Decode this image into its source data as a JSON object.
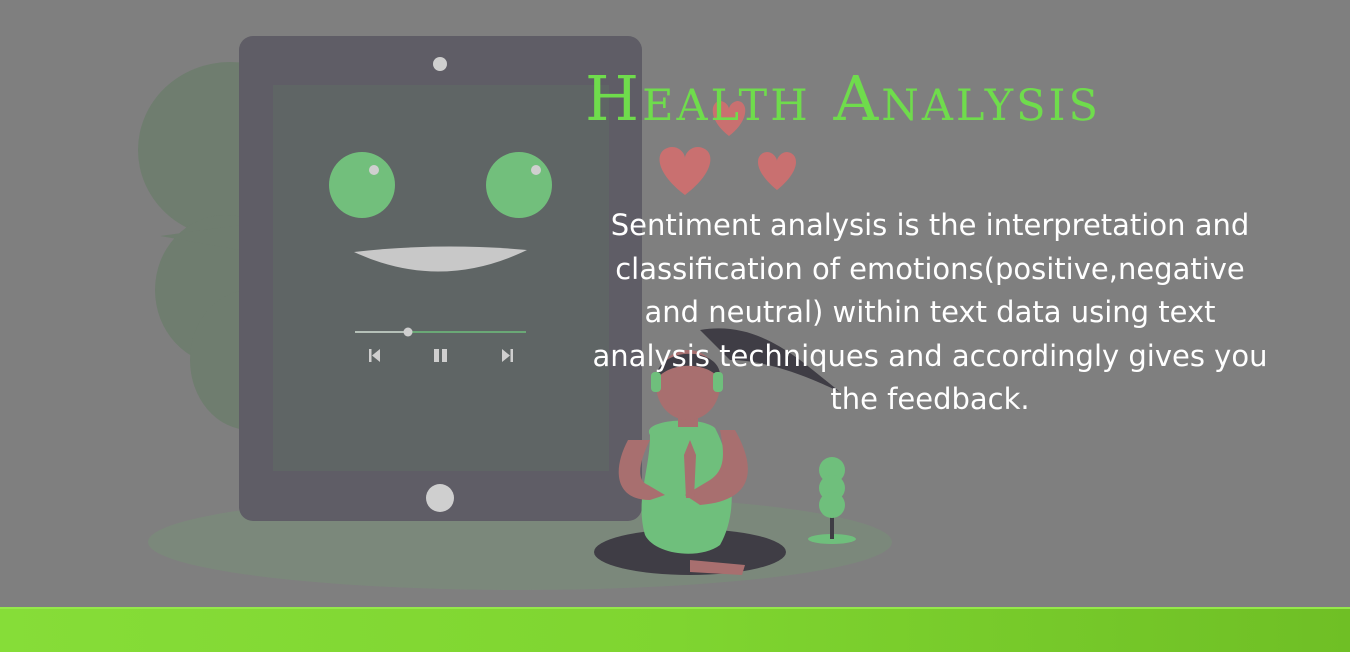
{
  "header": {
    "title": "Health Analysis"
  },
  "description": {
    "lines": [
      "Sentiment analysis is the interpretation and",
      "classification of emotions(positive,negative",
      "and neutral) within text data using text",
      "analysis techniques and accordingly gives you",
      "the feedback."
    ]
  },
  "illustration": {
    "icons": [
      "tablet-icon",
      "smiley-face-icon",
      "heart-icon",
      "meditating-woman-icon",
      "plant-icon",
      "previous-icon",
      "pause-icon",
      "next-icon"
    ],
    "colors": {
      "tablet": "#5f5d66",
      "screen": "#5f6565",
      "eyes": "#72bf7c",
      "heart": "#c97070",
      "skin": "#a86f6f",
      "top": "#6fbf7c",
      "hair": "#3f3d45"
    }
  },
  "footer": {
    "color": "#7fd530"
  }
}
